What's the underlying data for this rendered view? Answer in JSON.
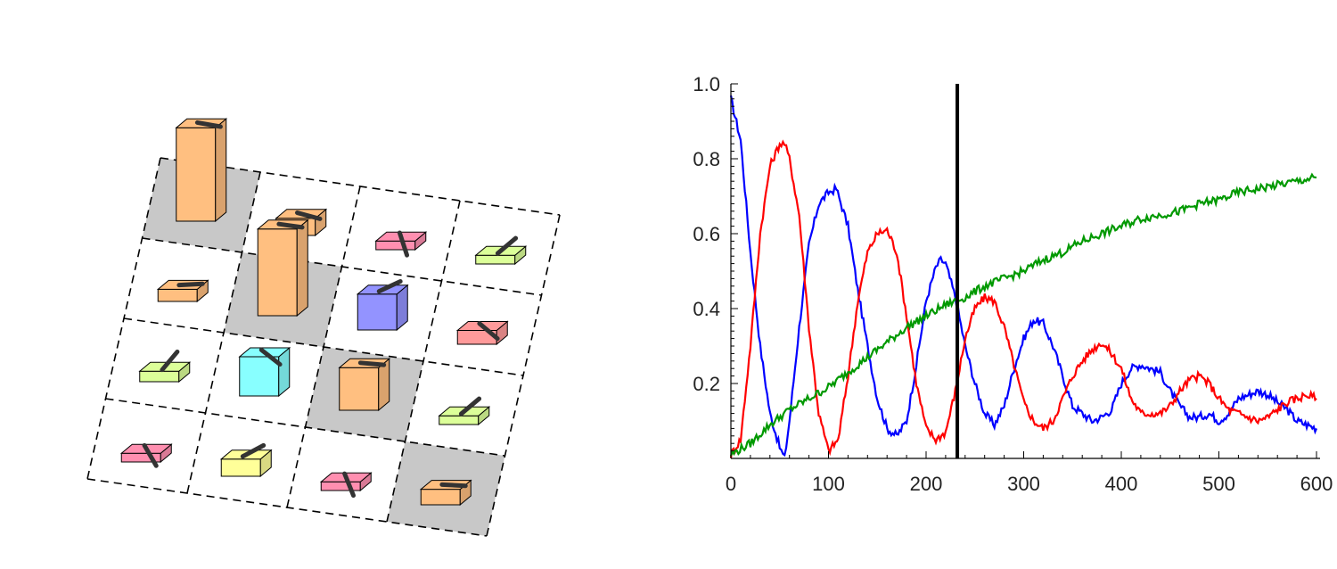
{
  "lattice": {
    "rows": 4,
    "cols": 4,
    "cells": [
      {
        "row": 0,
        "col": 0,
        "shaded": true,
        "color": "#ffbf80",
        "height": 2.6,
        "spin_angle": 10
      },
      {
        "row": 0,
        "col": 1,
        "shaded": false,
        "color": "#ffbf80",
        "height": 0.35,
        "spin_angle": 15
      },
      {
        "row": 0,
        "col": 2,
        "shaded": false,
        "color": "#ff8fb0",
        "height": 0.1,
        "spin_angle": 72
      },
      {
        "row": 0,
        "col": 3,
        "shaded": false,
        "color": "#dcff99",
        "height": 0.1,
        "spin_angle": -40
      },
      {
        "row": 1,
        "col": 0,
        "shaded": false,
        "color": "#ffbf80",
        "height": 0.2,
        "spin_angle": -3
      },
      {
        "row": 1,
        "col": 1,
        "shaded": true,
        "color": "#ffbf80",
        "height": 2.4,
        "spin_angle": 8
      },
      {
        "row": 1,
        "col": 2,
        "shaded": false,
        "color": "#9393ff",
        "height": 0.9,
        "spin_angle": -25
      },
      {
        "row": 1,
        "col": 3,
        "shaded": false,
        "color": "#ff9a9a",
        "height": 0.25,
        "spin_angle": 40
      },
      {
        "row": 2,
        "col": 0,
        "shaded": false,
        "color": "#dcff99",
        "height": 0.15,
        "spin_angle": -50
      },
      {
        "row": 2,
        "col": 1,
        "shaded": false,
        "color": "#88ffff",
        "height": 1.0,
        "spin_angle": 38
      },
      {
        "row": 2,
        "col": 2,
        "shaded": true,
        "color": "#ffbf80",
        "height": 1.1,
        "spin_angle": 5
      },
      {
        "row": 2,
        "col": 3,
        "shaded": false,
        "color": "#dcff99",
        "height": 0.1,
        "spin_angle": -40
      },
      {
        "row": 3,
        "col": 0,
        "shaded": false,
        "color": "#ff8fb0",
        "height": 0.1,
        "spin_angle": 60
      },
      {
        "row": 3,
        "col": 1,
        "shaded": false,
        "color": "#ffff99",
        "height": 0.35,
        "spin_angle": -28
      },
      {
        "row": 3,
        "col": 2,
        "shaded": false,
        "color": "#ff8fb0",
        "height": 0.1,
        "spin_angle": 68
      },
      {
        "row": 3,
        "col": 3,
        "shaded": true,
        "color": "#ffbf80",
        "height": 0.3,
        "spin_angle": 3
      }
    ]
  },
  "chart_data": {
    "type": "line",
    "title": "",
    "xlabel": "",
    "ylabel": "",
    "xlim": [
      0,
      600
    ],
    "ylim": [
      0,
      1.0
    ],
    "xticks": [
      0,
      100,
      200,
      300,
      400,
      500,
      600
    ],
    "xtick_labels": [
      "0",
      "100",
      "200",
      "300",
      "400",
      "500",
      "600"
    ],
    "yticks": [
      0.2,
      0.4,
      0.6,
      0.8,
      1.0
    ],
    "ytick_labels": [
      "0.2",
      "0.4",
      "0.6",
      "0.8",
      "1.0"
    ],
    "grid": false,
    "vline_x": 232,
    "series": [
      {
        "color": "#0000ff",
        "x": [
          0,
          10,
          20,
          30,
          40,
          50,
          55,
          60,
          70,
          80,
          90,
          100,
          108,
          120,
          130,
          140,
          150,
          160,
          170,
          180,
          190,
          200,
          210,
          215,
          220,
          230,
          240,
          250,
          260,
          270,
          280,
          290,
          300,
          310,
          320,
          330,
          340,
          350,
          360,
          370,
          380,
          390,
          400,
          410,
          420,
          430,
          440,
          450,
          460,
          470,
          480,
          490,
          500,
          510,
          520,
          530,
          540,
          550,
          560,
          570,
          580,
          590,
          600
        ],
        "y": [
          0.96,
          0.85,
          0.55,
          0.3,
          0.12,
          0.03,
          0.0,
          0.1,
          0.35,
          0.57,
          0.68,
          0.71,
          0.72,
          0.62,
          0.45,
          0.3,
          0.16,
          0.08,
          0.06,
          0.1,
          0.25,
          0.42,
          0.51,
          0.53,
          0.52,
          0.43,
          0.3,
          0.2,
          0.12,
          0.09,
          0.14,
          0.24,
          0.32,
          0.37,
          0.36,
          0.3,
          0.22,
          0.14,
          0.12,
          0.1,
          0.11,
          0.13,
          0.2,
          0.24,
          0.25,
          0.24,
          0.23,
          0.18,
          0.14,
          0.11,
          0.11,
          0.12,
          0.1,
          0.12,
          0.16,
          0.17,
          0.18,
          0.17,
          0.15,
          0.13,
          0.1,
          0.09,
          0.08
        ]
      },
      {
        "color": "#ff0000",
        "x": [
          0,
          10,
          20,
          30,
          40,
          50,
          55,
          60,
          70,
          80,
          90,
          100,
          110,
          120,
          130,
          140,
          150,
          160,
          170,
          180,
          190,
          200,
          210,
          220,
          230,
          240,
          250,
          260,
          270,
          280,
          290,
          300,
          310,
          320,
          330,
          340,
          350,
          360,
          370,
          380,
          390,
          400,
          410,
          420,
          430,
          440,
          450,
          460,
          470,
          480,
          490,
          500,
          510,
          520,
          530,
          540,
          550,
          560,
          570,
          580,
          590,
          600
        ],
        "y": [
          0.01,
          0.05,
          0.3,
          0.6,
          0.78,
          0.84,
          0.84,
          0.8,
          0.65,
          0.35,
          0.12,
          0.02,
          0.05,
          0.22,
          0.42,
          0.55,
          0.6,
          0.61,
          0.55,
          0.38,
          0.2,
          0.08,
          0.05,
          0.07,
          0.18,
          0.32,
          0.4,
          0.43,
          0.42,
          0.35,
          0.25,
          0.15,
          0.1,
          0.08,
          0.1,
          0.16,
          0.22,
          0.26,
          0.29,
          0.31,
          0.28,
          0.24,
          0.16,
          0.12,
          0.12,
          0.12,
          0.14,
          0.18,
          0.21,
          0.22,
          0.2,
          0.16,
          0.13,
          0.12,
          0.11,
          0.1,
          0.11,
          0.13,
          0.15,
          0.16,
          0.17,
          0.16
        ]
      },
      {
        "color": "#009900",
        "x": [
          0,
          20,
          40,
          60,
          80,
          100,
          120,
          140,
          160,
          180,
          200,
          220,
          240,
          260,
          280,
          300,
          320,
          340,
          360,
          380,
          400,
          420,
          440,
          460,
          480,
          500,
          520,
          540,
          560,
          580,
          600
        ],
        "y": [
          0.01,
          0.04,
          0.09,
          0.13,
          0.16,
          0.19,
          0.23,
          0.27,
          0.31,
          0.35,
          0.38,
          0.41,
          0.43,
          0.46,
          0.48,
          0.5,
          0.53,
          0.55,
          0.58,
          0.6,
          0.62,
          0.64,
          0.65,
          0.66,
          0.68,
          0.69,
          0.71,
          0.72,
          0.73,
          0.74,
          0.75
        ]
      }
    ]
  }
}
